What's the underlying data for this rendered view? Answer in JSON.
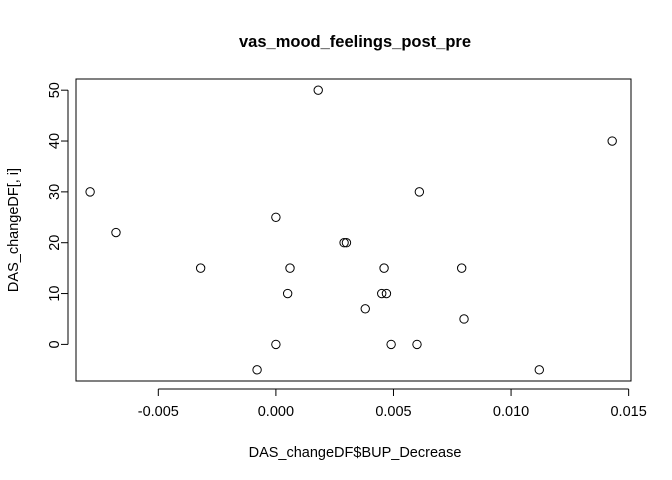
{
  "chart_data": {
    "type": "scatter",
    "title": "vas_mood_feelings_post_pre",
    "xlabel": "DAS_changeDF$BUP_Decrease",
    "ylabel": "DAS_changeDF[, i]",
    "xlim": [
      -0.0085,
      0.0151
    ],
    "ylim": [
      -7.2,
      52.2
    ],
    "xticks": [
      -0.005,
      0.0,
      0.005,
      0.01,
      0.015
    ],
    "xtick_labels": [
      "-0.005",
      "0.000",
      "0.005",
      "0.010",
      "0.015"
    ],
    "yticks": [
      0,
      10,
      20,
      30,
      40,
      50
    ],
    "ytick_labels": [
      "0",
      "10",
      "20",
      "30",
      "40",
      "50"
    ],
    "grid": false,
    "points": [
      {
        "x": -0.0079,
        "y": 30
      },
      {
        "x": -0.0068,
        "y": 22
      },
      {
        "x": -0.0032,
        "y": 15
      },
      {
        "x": -0.0008,
        "y": -5
      },
      {
        "x": 0.0,
        "y": 25
      },
      {
        "x": 0.0,
        "y": 0
      },
      {
        "x": 0.0005,
        "y": 10
      },
      {
        "x": 0.0006,
        "y": 15
      },
      {
        "x": 0.0018,
        "y": 50
      },
      {
        "x": 0.0029,
        "y": 20
      },
      {
        "x": 0.003,
        "y": 20
      },
      {
        "x": 0.0038,
        "y": 7
      },
      {
        "x": 0.0045,
        "y": 10
      },
      {
        "x": 0.0046,
        "y": 15
      },
      {
        "x": 0.0047,
        "y": 10
      },
      {
        "x": 0.0049,
        "y": 0
      },
      {
        "x": 0.006,
        "y": 0
      },
      {
        "x": 0.0061,
        "y": 30
      },
      {
        "x": 0.0079,
        "y": 15
      },
      {
        "x": 0.008,
        "y": 5
      },
      {
        "x": 0.0112,
        "y": -5
      },
      {
        "x": 0.0143,
        "y": 40
      }
    ]
  }
}
